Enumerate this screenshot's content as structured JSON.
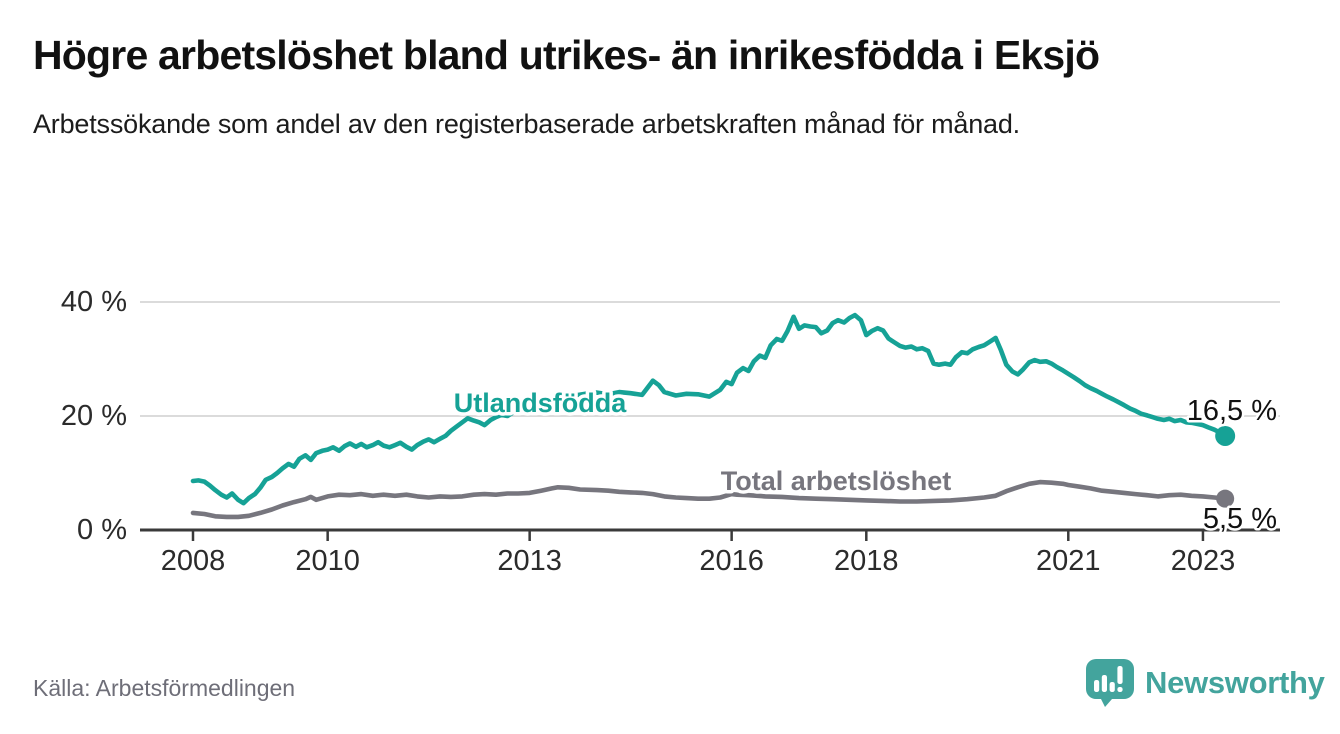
{
  "title": "Högre arbetslöshet bland utrikes- än inrikesfödda i Eksjö",
  "subtitle": "Arbetssökande som andel av den registerbaserade arbetskraften månad för månad.",
  "source": "Källa: Arbetsförmedlingen",
  "branding": {
    "logo_text": "Newsworthy",
    "logo_icon": "newsworthy-speech-bubble-bar-chart-icon",
    "brand_color": "#43a49d"
  },
  "chart_data": {
    "type": "line",
    "unit": "%",
    "grid": "horizontal-only",
    "legend_position": "inline-labels-on-lines",
    "ylim": [
      0,
      42
    ],
    "xlim": [
      2007.2,
      2024.1
    ],
    "y_ticks": [
      {
        "value": 0,
        "label": "0 %"
      },
      {
        "value": 20,
        "label": "20 %"
      },
      {
        "value": 40,
        "label": "40 %"
      }
    ],
    "x_ticks": [
      {
        "value": 2008,
        "label": "2008"
      },
      {
        "value": 2010,
        "label": "2010"
      },
      {
        "value": 2013,
        "label": "2013"
      },
      {
        "value": 2016,
        "label": "2016"
      },
      {
        "value": 2018,
        "label": "2018"
      },
      {
        "value": 2021,
        "label": "2021"
      },
      {
        "value": 2023,
        "label": "2023"
      }
    ],
    "series": [
      {
        "name": "Utlandsfödda",
        "color": "#16a296",
        "end_label": "16,5 %",
        "end_value": 16.5,
        "points": [
          [
            2008.0,
            8.6
          ],
          [
            2008.08,
            8.7
          ],
          [
            2008.17,
            8.5
          ],
          [
            2008.25,
            7.8
          ],
          [
            2008.33,
            7.0
          ],
          [
            2008.42,
            6.2
          ],
          [
            2008.5,
            5.7
          ],
          [
            2008.58,
            6.4
          ],
          [
            2008.67,
            5.3
          ],
          [
            2008.75,
            4.7
          ],
          [
            2008.83,
            5.6
          ],
          [
            2008.92,
            6.3
          ],
          [
            2009.0,
            7.4
          ],
          [
            2009.08,
            8.8
          ],
          [
            2009.17,
            9.3
          ],
          [
            2009.25,
            10.0
          ],
          [
            2009.33,
            10.8
          ],
          [
            2009.42,
            11.6
          ],
          [
            2009.5,
            11.1
          ],
          [
            2009.58,
            12.5
          ],
          [
            2009.67,
            13.1
          ],
          [
            2009.75,
            12.3
          ],
          [
            2009.83,
            13.5
          ],
          [
            2009.92,
            13.9
          ],
          [
            2010.0,
            14.1
          ],
          [
            2010.08,
            14.5
          ],
          [
            2010.17,
            13.9
          ],
          [
            2010.25,
            14.7
          ],
          [
            2010.33,
            15.2
          ],
          [
            2010.42,
            14.6
          ],
          [
            2010.5,
            15.1
          ],
          [
            2010.58,
            14.5
          ],
          [
            2010.67,
            14.9
          ],
          [
            2010.75,
            15.4
          ],
          [
            2010.83,
            14.8
          ],
          [
            2010.92,
            14.5
          ],
          [
            2011.0,
            14.9
          ],
          [
            2011.08,
            15.3
          ],
          [
            2011.17,
            14.6
          ],
          [
            2011.25,
            14.1
          ],
          [
            2011.33,
            14.9
          ],
          [
            2011.42,
            15.5
          ],
          [
            2011.5,
            15.9
          ],
          [
            2011.58,
            15.4
          ],
          [
            2011.67,
            16.0
          ],
          [
            2011.75,
            16.5
          ],
          [
            2011.83,
            17.4
          ],
          [
            2011.92,
            18.2
          ],
          [
            2012.0,
            18.9
          ],
          [
            2012.08,
            19.6
          ],
          [
            2012.17,
            19.2
          ],
          [
            2012.25,
            18.9
          ],
          [
            2012.33,
            18.4
          ],
          [
            2012.42,
            19.3
          ],
          [
            2012.5,
            19.8
          ],
          [
            2012.58,
            20.2
          ],
          [
            2012.67,
            20.0
          ],
          [
            2012.75,
            20.6
          ],
          [
            2012.83,
            20.9
          ],
          [
            2012.92,
            21.4
          ],
          [
            2013.0,
            21.9
          ],
          [
            2013.17,
            22.4
          ],
          [
            2013.33,
            22.9
          ],
          [
            2013.5,
            23.3
          ],
          [
            2013.67,
            23.6
          ],
          [
            2013.83,
            23.9
          ],
          [
            2014.0,
            24.1
          ],
          [
            2014.17,
            23.8
          ],
          [
            2014.33,
            24.2
          ],
          [
            2014.5,
            24.0
          ],
          [
            2014.67,
            23.7
          ],
          [
            2014.83,
            26.2
          ],
          [
            2014.92,
            25.4
          ],
          [
            2015.0,
            24.2
          ],
          [
            2015.17,
            23.6
          ],
          [
            2015.33,
            23.9
          ],
          [
            2015.5,
            23.8
          ],
          [
            2015.67,
            23.4
          ],
          [
            2015.83,
            24.6
          ],
          [
            2015.92,
            26.0
          ],
          [
            2016.0,
            25.6
          ],
          [
            2016.08,
            27.6
          ],
          [
            2016.17,
            28.4
          ],
          [
            2016.25,
            27.9
          ],
          [
            2016.33,
            29.6
          ],
          [
            2016.42,
            30.6
          ],
          [
            2016.5,
            30.2
          ],
          [
            2016.58,
            32.4
          ],
          [
            2016.67,
            33.5
          ],
          [
            2016.75,
            33.2
          ],
          [
            2016.83,
            34.9
          ],
          [
            2016.92,
            37.4
          ],
          [
            2017.0,
            35.3
          ],
          [
            2017.08,
            35.9
          ],
          [
            2017.17,
            35.7
          ],
          [
            2017.25,
            35.6
          ],
          [
            2017.33,
            34.5
          ],
          [
            2017.42,
            35.0
          ],
          [
            2017.5,
            36.3
          ],
          [
            2017.58,
            36.8
          ],
          [
            2017.67,
            36.4
          ],
          [
            2017.75,
            37.2
          ],
          [
            2017.83,
            37.7
          ],
          [
            2017.92,
            36.8
          ],
          [
            2018.0,
            34.2
          ],
          [
            2018.08,
            34.9
          ],
          [
            2018.17,
            35.4
          ],
          [
            2018.25,
            35.0
          ],
          [
            2018.33,
            33.6
          ],
          [
            2018.42,
            32.9
          ],
          [
            2018.5,
            32.3
          ],
          [
            2018.58,
            32.0
          ],
          [
            2018.67,
            32.2
          ],
          [
            2018.75,
            31.7
          ],
          [
            2018.83,
            31.9
          ],
          [
            2018.92,
            31.4
          ],
          [
            2019.0,
            29.2
          ],
          [
            2019.08,
            29.0
          ],
          [
            2019.17,
            29.2
          ],
          [
            2019.25,
            29.0
          ],
          [
            2019.33,
            30.3
          ],
          [
            2019.42,
            31.2
          ],
          [
            2019.5,
            31.0
          ],
          [
            2019.58,
            31.7
          ],
          [
            2019.67,
            32.1
          ],
          [
            2019.75,
            32.4
          ],
          [
            2019.83,
            33.0
          ],
          [
            2019.92,
            33.7
          ],
          [
            2020.0,
            31.5
          ],
          [
            2020.08,
            29.0
          ],
          [
            2020.17,
            27.8
          ],
          [
            2020.25,
            27.3
          ],
          [
            2020.33,
            28.2
          ],
          [
            2020.42,
            29.4
          ],
          [
            2020.5,
            29.8
          ],
          [
            2020.58,
            29.5
          ],
          [
            2020.67,
            29.6
          ],
          [
            2020.75,
            29.2
          ],
          [
            2020.83,
            28.6
          ],
          [
            2020.92,
            28.0
          ],
          [
            2021.0,
            27.4
          ],
          [
            2021.08,
            26.8
          ],
          [
            2021.17,
            26.1
          ],
          [
            2021.25,
            25.4
          ],
          [
            2021.33,
            24.9
          ],
          [
            2021.42,
            24.4
          ],
          [
            2021.5,
            23.9
          ],
          [
            2021.58,
            23.4
          ],
          [
            2021.67,
            22.9
          ],
          [
            2021.75,
            22.4
          ],
          [
            2021.83,
            21.9
          ],
          [
            2021.92,
            21.3
          ],
          [
            2022.0,
            20.9
          ],
          [
            2022.08,
            20.4
          ],
          [
            2022.17,
            20.1
          ],
          [
            2022.25,
            19.8
          ],
          [
            2022.33,
            19.5
          ],
          [
            2022.42,
            19.3
          ],
          [
            2022.5,
            19.5
          ],
          [
            2022.58,
            19.1
          ],
          [
            2022.67,
            19.3
          ],
          [
            2022.75,
            18.9
          ],
          [
            2022.83,
            18.8
          ],
          [
            2022.92,
            18.6
          ],
          [
            2023.0,
            18.4
          ],
          [
            2023.08,
            18.0
          ],
          [
            2023.17,
            17.6
          ],
          [
            2023.25,
            17.1
          ],
          [
            2023.33,
            16.5
          ]
        ]
      },
      {
        "name": "Total arbetslöshet",
        "color": "#77767e",
        "end_label": "5,5 %",
        "end_value": 5.5,
        "points": [
          [
            2008.0,
            3.0
          ],
          [
            2008.17,
            2.8
          ],
          [
            2008.33,
            2.4
          ],
          [
            2008.5,
            2.3
          ],
          [
            2008.67,
            2.3
          ],
          [
            2008.83,
            2.5
          ],
          [
            2009.0,
            3.0
          ],
          [
            2009.17,
            3.6
          ],
          [
            2009.33,
            4.3
          ],
          [
            2009.5,
            4.9
          ],
          [
            2009.67,
            5.4
          ],
          [
            2009.75,
            5.8
          ],
          [
            2009.83,
            5.3
          ],
          [
            2010.0,
            5.9
          ],
          [
            2010.17,
            6.2
          ],
          [
            2010.33,
            6.1
          ],
          [
            2010.5,
            6.3
          ],
          [
            2010.67,
            6.0
          ],
          [
            2010.83,
            6.2
          ],
          [
            2011.0,
            6.0
          ],
          [
            2011.17,
            6.2
          ],
          [
            2011.33,
            5.9
          ],
          [
            2011.5,
            5.7
          ],
          [
            2011.67,
            5.9
          ],
          [
            2011.83,
            5.8
          ],
          [
            2012.0,
            5.9
          ],
          [
            2012.17,
            6.2
          ],
          [
            2012.33,
            6.3
          ],
          [
            2012.5,
            6.2
          ],
          [
            2012.67,
            6.4
          ],
          [
            2012.83,
            6.4
          ],
          [
            2013.0,
            6.5
          ],
          [
            2013.17,
            6.9
          ],
          [
            2013.33,
            7.3
          ],
          [
            2013.42,
            7.5
          ],
          [
            2013.58,
            7.4
          ],
          [
            2013.75,
            7.1
          ],
          [
            2014.0,
            7.0
          ],
          [
            2014.17,
            6.9
          ],
          [
            2014.33,
            6.7
          ],
          [
            2014.5,
            6.6
          ],
          [
            2014.67,
            6.5
          ],
          [
            2014.83,
            6.3
          ],
          [
            2015.0,
            5.9
          ],
          [
            2015.17,
            5.7
          ],
          [
            2015.33,
            5.6
          ],
          [
            2015.5,
            5.5
          ],
          [
            2015.67,
            5.5
          ],
          [
            2015.83,
            5.7
          ],
          [
            2016.0,
            6.3
          ],
          [
            2016.08,
            6.2
          ],
          [
            2016.25,
            6.1
          ],
          [
            2016.5,
            5.9
          ],
          [
            2016.75,
            5.8
          ],
          [
            2017.0,
            5.6
          ],
          [
            2017.25,
            5.5
          ],
          [
            2017.5,
            5.4
          ],
          [
            2017.75,
            5.3
          ],
          [
            2018.0,
            5.2
          ],
          [
            2018.25,
            5.1
          ],
          [
            2018.5,
            5.0
          ],
          [
            2018.75,
            5.0
          ],
          [
            2019.0,
            5.1
          ],
          [
            2019.25,
            5.2
          ],
          [
            2019.5,
            5.4
          ],
          [
            2019.75,
            5.7
          ],
          [
            2019.92,
            6.0
          ],
          [
            2020.08,
            6.8
          ],
          [
            2020.25,
            7.5
          ],
          [
            2020.42,
            8.1
          ],
          [
            2020.58,
            8.4
          ],
          [
            2020.75,
            8.3
          ],
          [
            2020.92,
            8.1
          ],
          [
            2021.0,
            7.9
          ],
          [
            2021.17,
            7.6
          ],
          [
            2021.33,
            7.3
          ],
          [
            2021.5,
            6.9
          ],
          [
            2021.67,
            6.7
          ],
          [
            2021.83,
            6.5
          ],
          [
            2022.0,
            6.3
          ],
          [
            2022.17,
            6.1
          ],
          [
            2022.33,
            5.9
          ],
          [
            2022.5,
            6.1
          ],
          [
            2022.67,
            6.2
          ],
          [
            2022.83,
            6.0
          ],
          [
            2023.0,
            5.9
          ],
          [
            2023.17,
            5.7
          ],
          [
            2023.33,
            5.5
          ]
        ]
      }
    ]
  }
}
